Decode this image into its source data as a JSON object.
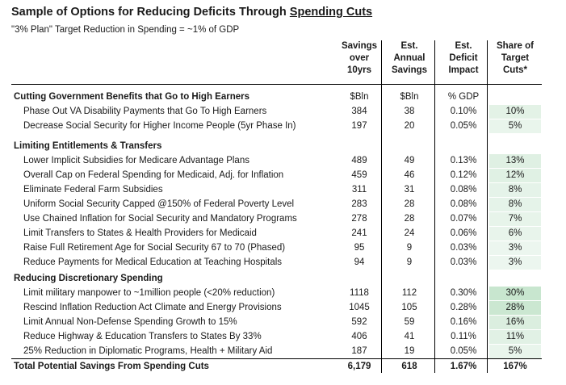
{
  "title_pre": "Sample of Options for Reducing Deficits Through ",
  "title_emph": "Spending Cuts",
  "subtitle": "\"3% Plan\" Target Reduction in Spending = ~1% of GDP",
  "headers": {
    "savings": [
      "Savings",
      "over",
      "10yrs"
    ],
    "annual": [
      "Est.",
      "Annual",
      "Savings"
    ],
    "deficit": [
      "Est.",
      "Deficit",
      "Impact"
    ],
    "share": [
      "Share of",
      "Target",
      "Cuts*"
    ]
  },
  "units": {
    "savings": "$Bln",
    "annual": "$Bln",
    "deficit": "% GDP"
  },
  "sections": [
    {
      "title": "Cutting Government Benefits that Go to High Earners",
      "rows": [
        {
          "label": "Phase Out VA Disability Payments that Go To High Earners",
          "savings": "384",
          "annual": "38",
          "deficit": "0.10%",
          "share": "10%",
          "share_value": 10
        },
        {
          "label": "Decrease Social Security for Higher Income People (5yr Phase In)",
          "savings": "197",
          "annual": "20",
          "deficit": "0.05%",
          "share": "5%",
          "share_value": 5
        }
      ]
    },
    {
      "title": "Limiting Entitlements & Transfers",
      "rows": [
        {
          "label": "Lower Implicit Subsidies for Medicare Advantage Plans",
          "savings": "489",
          "annual": "49",
          "deficit": "0.13%",
          "share": "13%",
          "share_value": 13
        },
        {
          "label": "Overall Cap on Federal Spending for Medicaid, Adj. for Inflation",
          "savings": "459",
          "annual": "46",
          "deficit": "0.12%",
          "share": "12%",
          "share_value": 12
        },
        {
          "label": "Eliminate Federal Farm Subsidies",
          "savings": "311",
          "annual": "31",
          "deficit": "0.08%",
          "share": "8%",
          "share_value": 8
        },
        {
          "label": "Uniform Social Security Capped @150% of Federal Poverty Level",
          "savings": "283",
          "annual": "28",
          "deficit": "0.08%",
          "share": "8%",
          "share_value": 8
        },
        {
          "label": "Use Chained Inflation for Social Security and Mandatory Programs",
          "savings": "278",
          "annual": "28",
          "deficit": "0.07%",
          "share": "7%",
          "share_value": 7
        },
        {
          "label": "Limit Transfers to States & Health Providers for Medicaid",
          "savings": "241",
          "annual": "24",
          "deficit": "0.06%",
          "share": "6%",
          "share_value": 6
        },
        {
          "label": "Raise Full Retirement Age for Social Security 67 to 70 (Phased)",
          "savings": "95",
          "annual": "9",
          "deficit": "0.03%",
          "share": "3%",
          "share_value": 3
        },
        {
          "label": "Reduce Payments for Medical Education at Teaching Hospitals",
          "savings": "94",
          "annual": "9",
          "deficit": "0.03%",
          "share": "3%",
          "share_value": 3
        }
      ]
    },
    {
      "title": "Reducing Discretionary Spending",
      "rows": [
        {
          "label": "Limit military manpower to ~1million people (<20% reduction)",
          "savings": "1118",
          "annual": "112",
          "deficit": "0.30%",
          "share": "30%",
          "share_value": 30
        },
        {
          "label": "Rescind Inflation Reduction Act Climate and Energy Provisions",
          "savings": "1045",
          "annual": "105",
          "deficit": "0.28%",
          "share": "28%",
          "share_value": 28
        },
        {
          "label": "Limit Annual Non-Defense Spending Growth to 15%",
          "savings": "592",
          "annual": "59",
          "deficit": "0.16%",
          "share": "16%",
          "share_value": 16
        },
        {
          "label": "Reduce Highway & Education Transfers to States By 33%",
          "savings": "406",
          "annual": "41",
          "deficit": "0.11%",
          "share": "11%",
          "share_value": 11
        },
        {
          "label": "25% Reduction in Diplomatic Programs, Health + Military Aid",
          "savings": "187",
          "annual": "19",
          "deficit": "0.05%",
          "share": "5%",
          "share_value": 5
        }
      ]
    }
  ],
  "total": {
    "label": "Total Potential Savings From Spending Cuts",
    "savings": "6,179",
    "annual": "618",
    "deficit": "1.67%",
    "share": "167%"
  },
  "colors": {
    "heat_low": "#f0f8f2",
    "heat_high": "#c8e6cf",
    "rule": "#000000"
  }
}
